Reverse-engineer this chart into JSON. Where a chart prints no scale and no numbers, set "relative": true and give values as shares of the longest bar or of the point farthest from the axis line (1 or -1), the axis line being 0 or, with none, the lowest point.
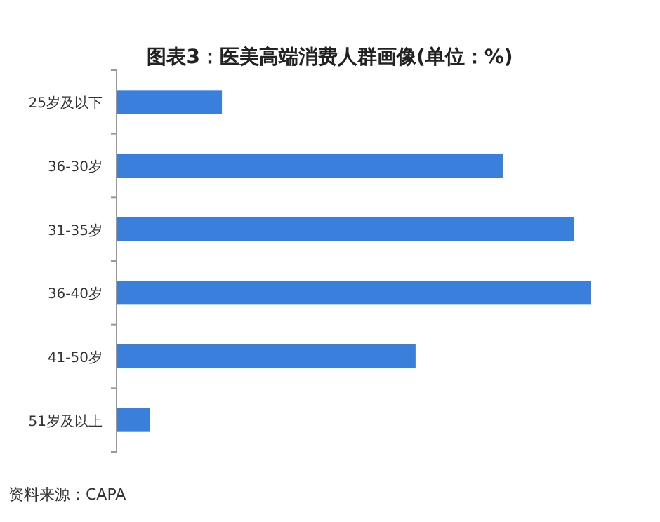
{
  "chart_data": {
    "type": "bar",
    "orientation": "horizontal",
    "relative": true,
    "title": "图表3：医美高端消费人群画像(单位：%)",
    "categories": [
      "25岁及以下",
      "36-30岁",
      "31-35岁",
      "36-40岁",
      "41-50岁",
      "51岁及以上"
    ],
    "values": [
      0.222,
      0.814,
      0.964,
      1,
      0.63,
      0.071
    ],
    "color": "#3a7fdc",
    "annotations": [
      "资料来源：CAPA"
    ]
  }
}
